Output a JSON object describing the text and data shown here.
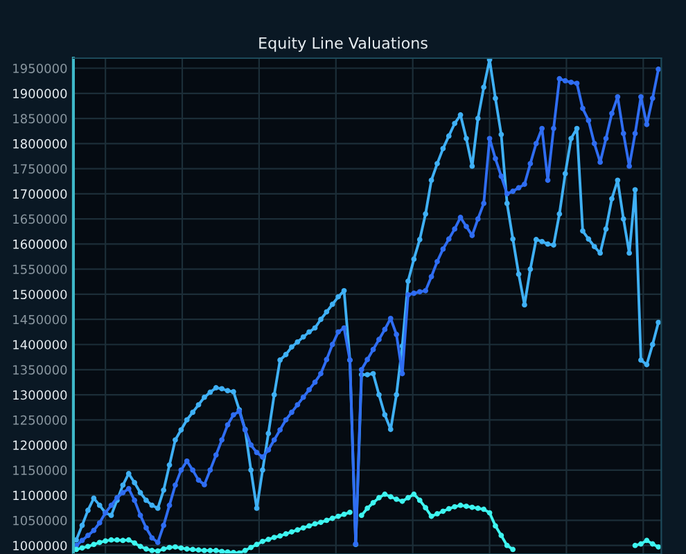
{
  "chart_data": {
    "type": "line",
    "title": "Equity Line Valuations",
    "marker": "circle",
    "grid": true,
    "tick_labels": "y",
    "categories": [
      null,
      null,
      null,
      null,
      null,
      null,
      null,
      null,
      null,
      null,
      null,
      null,
      null,
      null,
      null,
      null,
      null,
      null,
      null,
      null,
      null,
      null,
      null,
      null,
      null,
      null,
      null,
      null,
      null,
      null,
      null,
      null,
      null,
      null,
      null,
      null,
      null,
      null,
      null,
      null,
      null,
      null,
      null,
      null,
      null,
      null,
      null,
      null,
      null,
      null,
      null,
      null,
      null,
      null,
      null,
      null,
      null,
      null,
      null,
      null,
      null,
      null,
      null,
      null,
      null,
      null,
      null,
      null,
      null,
      null,
      null,
      null,
      null,
      null,
      null,
      null,
      null,
      null,
      null,
      null,
      null,
      null,
      null,
      null,
      null,
      null,
      null,
      null,
      null,
      null,
      null,
      null,
      null,
      null,
      null,
      null,
      null,
      null,
      null,
      null,
      null
    ],
    "ylim": [
      983000,
      1970000
    ],
    "yticks": [
      1000000,
      1050000,
      1100000,
      1150000,
      1200000,
      1250000,
      1300000,
      1350000,
      1400000,
      1450000,
      1500000,
      1550000,
      1600000,
      1650000,
      1700000,
      1750000,
      1800000,
      1850000,
      1900000,
      1950000
    ],
    "series": [
      {
        "color": "#3fb0f5",
        "values": [
          1011000,
          1040000,
          1070000,
          1094000,
          1080000,
          1065000,
          1060000,
          1090000,
          1120000,
          1143000,
          1125000,
          1105000,
          1090000,
          1080000,
          1074000,
          1110000,
          1160000,
          1210000,
          1230000,
          1250000,
          1265000,
          1280000,
          1295000,
          1305000,
          1314000,
          1312000,
          1308000,
          1306000,
          1270000,
          1231000,
          1150000,
          1074000,
          1150000,
          1223000,
          1300000,
          1369000,
          1380000,
          1395000,
          1405000,
          1415000,
          1425000,
          1433000,
          1450000,
          1465000,
          1480000,
          1495000,
          1507000,
          1369000,
          1002000,
          1340000,
          1340000,
          1342000,
          1300000,
          1260000,
          1231000,
          1300000,
          1397000,
          1526000,
          1570000,
          1609000,
          1660000,
          1727000,
          1760000,
          1790000,
          1815000,
          1840000,
          1857000,
          1810000,
          1755000,
          1850000,
          1912000,
          1967000,
          1890000,
          1818000,
          1681000,
          1610000,
          1540000,
          1479000,
          1550000,
          1609000,
          1605000,
          1600000,
          1598000,
          1660000,
          1740000,
          1810000,
          1830000,
          1626000,
          1610000,
          1595000,
          1582000,
          1630000,
          1690000,
          1727000,
          1650000,
          1582000,
          1708000,
          1369000,
          1360000,
          1400000,
          1444000
        ]
      },
      {
        "color": "#2f6df2",
        "values": [
          1000000,
          1010000,
          1020000,
          1030000,
          1045000,
          1065000,
          1080000,
          1095000,
          1105000,
          1113000,
          1090000,
          1060000,
          1035000,
          1015000,
          1006000,
          1040000,
          1080000,
          1120000,
          1150000,
          1168000,
          1150000,
          1130000,
          1121000,
          1150000,
          1180000,
          1210000,
          1240000,
          1260000,
          1267000,
          1230000,
          1200000,
          1185000,
          1176000,
          1190000,
          1210000,
          1230000,
          1250000,
          1265000,
          1280000,
          1295000,
          1310000,
          1325000,
          1342000,
          1370000,
          1400000,
          1425000,
          1433000,
          1369000,
          1003000,
          1350000,
          1370000,
          1390000,
          1410000,
          1430000,
          1452000,
          1420000,
          1342000,
          1499000,
          1502000,
          1505000,
          1507000,
          1535000,
          1565000,
          1590000,
          1610000,
          1630000,
          1653000,
          1635000,
          1617000,
          1650000,
          1681000,
          1810000,
          1770000,
          1735000,
          1700000,
          1705000,
          1712000,
          1719000,
          1760000,
          1800000,
          1830000,
          1727000,
          1830000,
          1929000,
          1925000,
          1922000,
          1920000,
          1870000,
          1846000,
          1800000,
          1763000,
          1810000,
          1860000,
          1893000,
          1820000,
          1755000,
          1820000,
          1893000,
          1838000,
          1890000,
          1948000
        ]
      },
      {
        "color": "#3ef5f0",
        "values": [
          992000,
          995000,
          998000,
          1002000,
          1006000,
          1009000,
          1011000,
          1011000,
          1010000,
          1011000,
          1005000,
          998000,
          993000,
          990000,
          989000,
          993000,
          996000,
          997000,
          995000,
          993000,
          992000,
          991000,
          990000,
          990000,
          990000,
          988000,
          987000,
          986000,
          985000,
          990000,
          996000,
          1002000,
          1008000,
          1012000,
          1016000,
          1019000,
          1023000,
          1027000,
          1031000,
          1035000,
          1039000,
          1043000,
          1046000,
          1050000,
          1054000,
          1058000,
          1062000,
          1066000,
          null,
          1060000,
          1074000,
          1085000,
          1095000,
          1102000,
          1097000,
          1092000,
          1088000,
          1095000,
          1102000,
          1090000,
          1075000,
          1058000,
          1063000,
          1068000,
          1073000,
          1077000,
          1080000,
          1078000,
          1076000,
          1074000,
          1072000,
          1065000,
          1039000,
          1020000,
          1000000,
          992000,
          null,
          null,
          null,
          null,
          null,
          null,
          null,
          null,
          null,
          null,
          null,
          null,
          null,
          null,
          null,
          null,
          null,
          null,
          null,
          null,
          1000000,
          1003000,
          1010000,
          1003000,
          997000
        ]
      }
    ]
  }
}
